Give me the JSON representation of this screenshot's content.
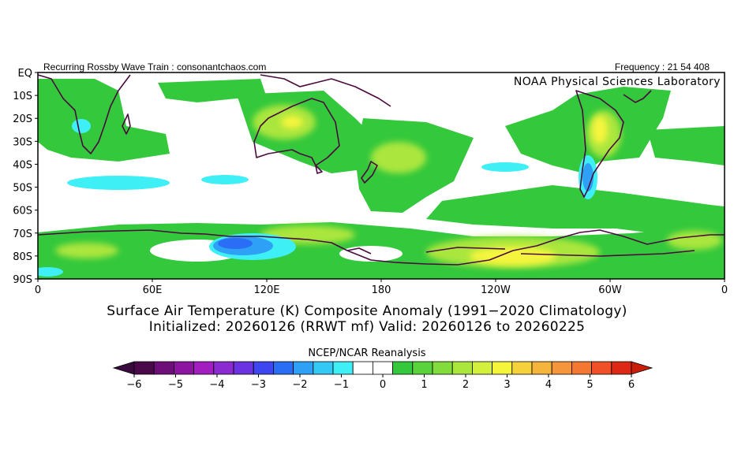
{
  "header": {
    "left_text": "Recurring Rossby Wave Train : consonantchaos.com",
    "right_text": "Frequency : 21 54 408",
    "lab_label": "NOAA Physical Sciences Laboratory"
  },
  "map": {
    "region": "Southern Hemisphere",
    "lat_range": [
      -90,
      0
    ],
    "lon_range": [
      0,
      360
    ],
    "lat_ticks": [
      "EQ",
      "10S",
      "20S",
      "30S",
      "40S",
      "50S",
      "60S",
      "70S",
      "80S",
      "90S"
    ],
    "lon_ticks": [
      "0",
      "60E",
      "120E",
      "180",
      "120W",
      "60W",
      "0"
    ],
    "anomalies": [
      {
        "lon": 20,
        "lat": -12,
        "value": 1.2
      },
      {
        "lon": 28,
        "lat": -22,
        "value": -1.2
      },
      {
        "lon": 25,
        "lat": -30,
        "value": 1.5
      },
      {
        "lon": 100,
        "lat": -48,
        "value": -0.8
      },
      {
        "lon": 130,
        "lat": -22,
        "value": 2.0
      },
      {
        "lon": 118,
        "lat": -8,
        "value": 1.2
      },
      {
        "lon": 158,
        "lat": -15,
        "value": 1.0
      },
      {
        "lon": 185,
        "lat": -40,
        "value": 1.8
      },
      {
        "lon": 210,
        "lat": -30,
        "value": 1.0
      },
      {
        "lon": 295,
        "lat": -25,
        "value": 2.2
      },
      {
        "lon": 290,
        "lat": -45,
        "value": -2.0
      },
      {
        "lon": 330,
        "lat": -30,
        "value": 1.0
      },
      {
        "lon": 250,
        "lat": -62,
        "value": 1.5
      },
      {
        "lon": 100,
        "lat": -77,
        "value": -3.5
      },
      {
        "lon": 140,
        "lat": -72,
        "value": 2.0
      },
      {
        "lon": 220,
        "lat": -82,
        "value": 2.6
      },
      {
        "lon": 190,
        "lat": -80,
        "value": 1.8
      },
      {
        "lon": 340,
        "lat": -78,
        "value": 2.0
      },
      {
        "lon": 40,
        "lat": -80,
        "value": 1.3
      }
    ]
  },
  "titles": {
    "line1": "Surface Air Temperature (K) Composite Anomaly (1991−2020 Climatology)",
    "line2": "Initialized: 20260126 (RRWT mf) Valid: 20260126 to 20260225"
  },
  "colorbar": {
    "title": "NCEP/NCAR Reanalysis",
    "labels": [
      "−6",
      "−5",
      "−4",
      "−3",
      "−2",
      "−1",
      "0",
      "1",
      "2",
      "3",
      "4",
      "5",
      "6"
    ],
    "colors": [
      "#4a0a4a",
      "#6e0e78",
      "#8c14a0",
      "#a21ec0",
      "#8a2ad0",
      "#6a32e0",
      "#3e46f0",
      "#2a6ef5",
      "#2ea0f5",
      "#34c8f5",
      "#3ef0f5",
      "#ffffff",
      "#ffffff",
      "#34c83c",
      "#5ad23c",
      "#82dc3c",
      "#aae63c",
      "#d2f03c",
      "#f5f53c",
      "#f5d23c",
      "#f5b43c",
      "#f5963c",
      "#f57832",
      "#f05028",
      "#dc2814"
    ]
  },
  "colors": {
    "coast": "#4a0a3e",
    "warm_light": "#5ad23c",
    "cold_light": "#3ef0f5"
  }
}
